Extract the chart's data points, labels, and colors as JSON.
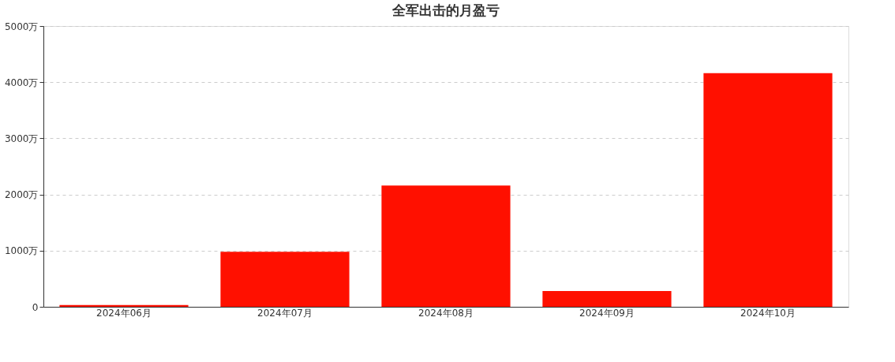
{
  "chart_data": {
    "type": "bar",
    "title": "全军出击的月盈亏",
    "categories": [
      "2024年06月",
      "2024年07月",
      "2024年08月",
      "2024年09月",
      "2024年10月"
    ],
    "values": [
      30,
      980,
      2160,
      280,
      4160
    ],
    "color": "#ff1000",
    "ylim": [
      0,
      5000
    ],
    "yticks": [
      {
        "value": 0,
        "label": "0"
      },
      {
        "value": 1000,
        "label": "1000万"
      },
      {
        "value": 2000,
        "label": "2000万"
      },
      {
        "value": 3000,
        "label": "3000万"
      },
      {
        "value": 4000,
        "label": "4000万"
      },
      {
        "value": 5000,
        "label": "5000万"
      }
    ],
    "grid": "y"
  }
}
